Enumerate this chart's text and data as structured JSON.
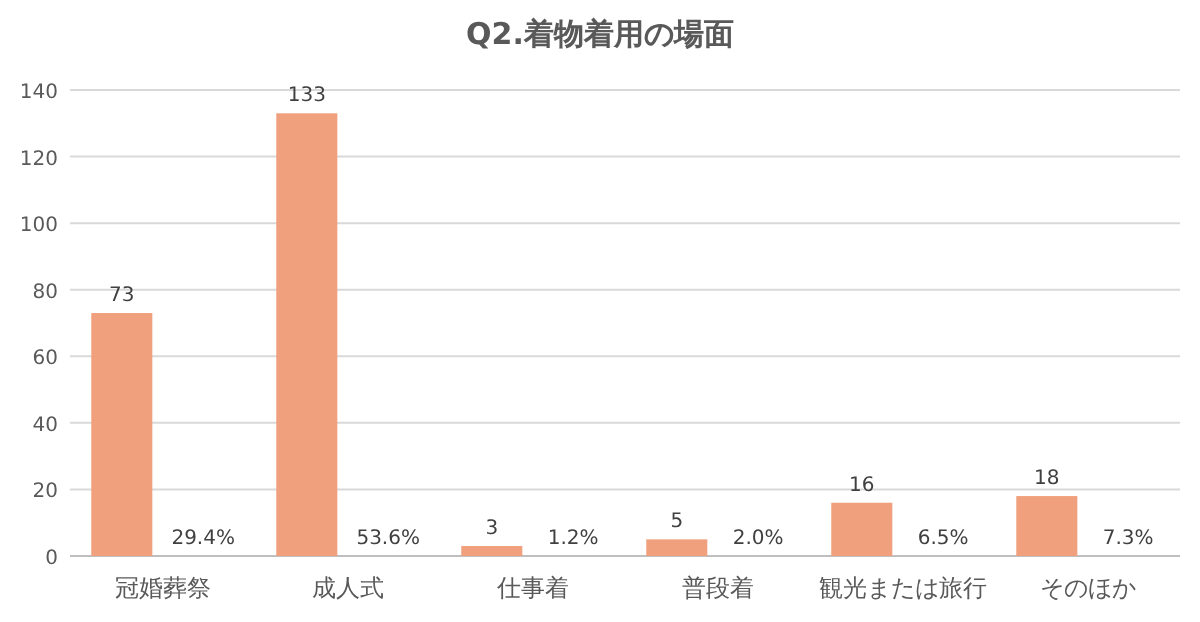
{
  "chart_data": {
    "type": "bar",
    "title": "Q2.着物着用の場面",
    "categories": [
      "冠婚葬祭",
      "成人式",
      "仕事着",
      "普段着",
      "観光または旅行",
      "そのほか"
    ],
    "values": [
      73,
      133,
      3,
      5,
      16,
      18
    ],
    "color": "#f0a07c",
    "data_labels": true,
    "ylim": [
      0,
      140
    ],
    "yticks": [
      0,
      20,
      40,
      60,
      80,
      100,
      120,
      140
    ],
    "grid": "y",
    "annotations": [
      "29.4%",
      "53.6%",
      "1.2%",
      "2.0%",
      "6.5%",
      "7.3%"
    ]
  }
}
